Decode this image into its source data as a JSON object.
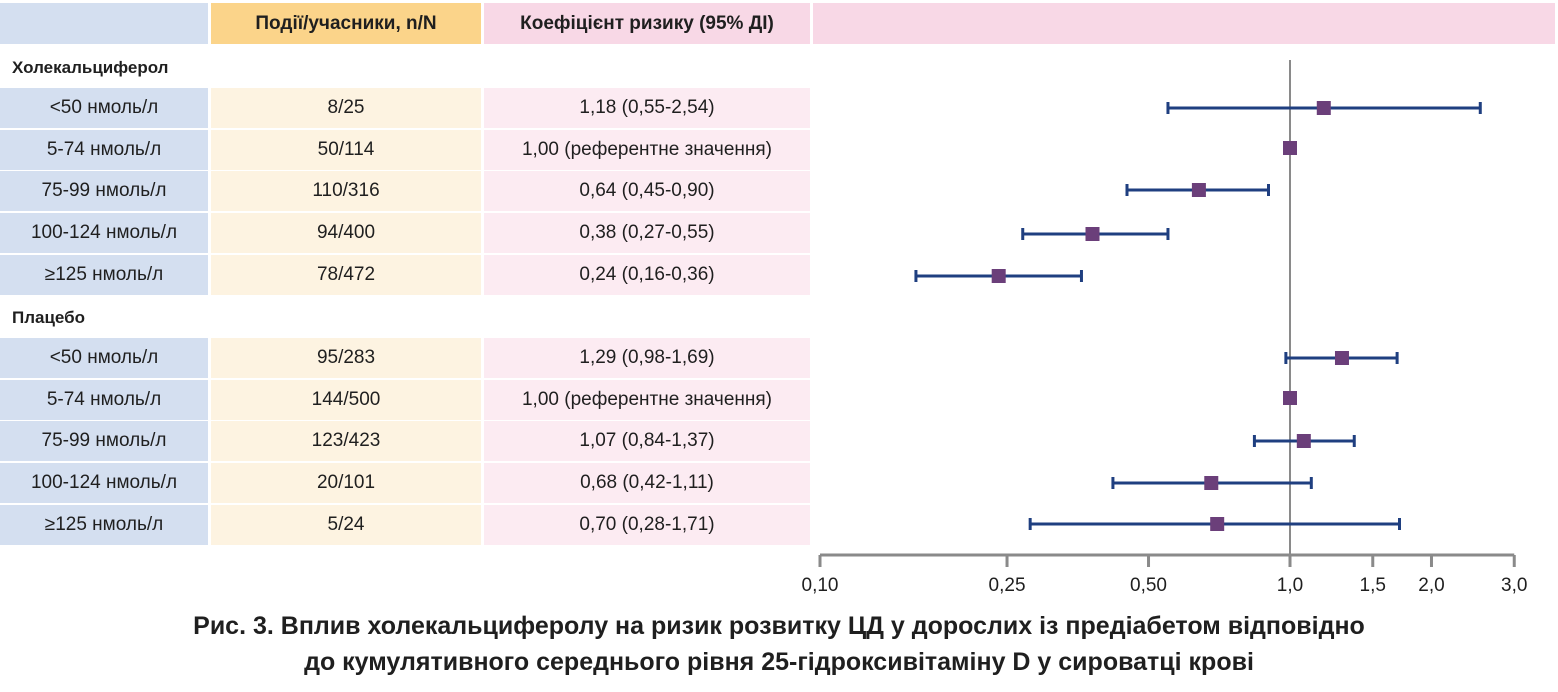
{
  "header": {
    "col1": "",
    "col2": "Події/учасники, n/N",
    "col3": "Коефіцієнт ризику (95% ДІ)",
    "col4": ""
  },
  "groups": [
    {
      "name": "Холекальциферол",
      "rows": [
        {
          "label": "<50 нмоль/л",
          "events": "8/25",
          "hr_text": "1,18 (0,55-2,54)"
        },
        {
          "label": "5-74 нмоль/л",
          "events": "50/114",
          "hr_text": "1,00 (референтне значення)"
        },
        {
          "label": "75-99 нмоль/л",
          "events": "110/316",
          "hr_text": "0,64 (0,45-0,90)"
        },
        {
          "label": "100-124 нмоль/л",
          "events": "94/400",
          "hr_text": "0,38 (0,27-0,55)"
        },
        {
          "label": "≥125 нмоль/л",
          "events": "78/472",
          "hr_text": "0,24 (0,16-0,36)"
        }
      ]
    },
    {
      "name": "Плацебо",
      "rows": [
        {
          "label": "<50 нмоль/л",
          "events": "95/283",
          "hr_text": "1,29 (0,98-1,69)"
        },
        {
          "label": "5-74 нмоль/л",
          "events": "144/500",
          "hr_text": "1,00 (референтне значення)"
        },
        {
          "label": "75-99 нмоль/л",
          "events": "123/423",
          "hr_text": "1,07 (0,84-1,37)"
        },
        {
          "label": "100-124 нмоль/л",
          "events": "20/101",
          "hr_text": "0,68 (0,42-1,11)"
        },
        {
          "label": "≥125 нмоль/л",
          "events": "5/24",
          "hr_text": "0,70 (0,28-1,71)"
        }
      ]
    }
  ],
  "caption": {
    "line1": "Рис. 3. Вплив холекальциферолу на ризик розвитку ЦД у дорослих із предіабетом відповідно",
    "line2": "до кумулятивного середнього рівня 25-гідроксивітаміну D у сироватці крові"
  },
  "chart_data": {
    "type": "forest",
    "x_scale": "log",
    "xlim": [
      0.1,
      3.0
    ],
    "reference_line": 1.0,
    "x_ticks": [
      0.1,
      0.25,
      0.5,
      1.0,
      1.5,
      2.0,
      3.0
    ],
    "x_tick_labels": [
      "0,10",
      "0,25",
      "0,50",
      "1,0",
      "1,5",
      "2,0",
      "3,0"
    ],
    "series": [
      {
        "name": "Холекальциферол",
        "points": [
          {
            "est": 1.18,
            "lo": 0.55,
            "hi": 2.54
          },
          {
            "est": 1.0,
            "lo": null,
            "hi": null
          },
          {
            "est": 0.64,
            "lo": 0.45,
            "hi": 0.9
          },
          {
            "est": 0.38,
            "lo": 0.27,
            "hi": 0.55
          },
          {
            "est": 0.24,
            "lo": 0.16,
            "hi": 0.36
          }
        ]
      },
      {
        "name": "Плацебо",
        "points": [
          {
            "est": 1.29,
            "lo": 0.98,
            "hi": 1.69
          },
          {
            "est": 1.0,
            "lo": null,
            "hi": null
          },
          {
            "est": 1.07,
            "lo": 0.84,
            "hi": 1.37
          },
          {
            "est": 0.68,
            "lo": 0.42,
            "hi": 1.11
          },
          {
            "est": 0.7,
            "lo": 0.28,
            "hi": 1.71
          }
        ]
      }
    ],
    "colors": {
      "ci_line": "#1f3f80",
      "marker": "#6b3f7a",
      "axis": "#8a8a8a"
    }
  }
}
